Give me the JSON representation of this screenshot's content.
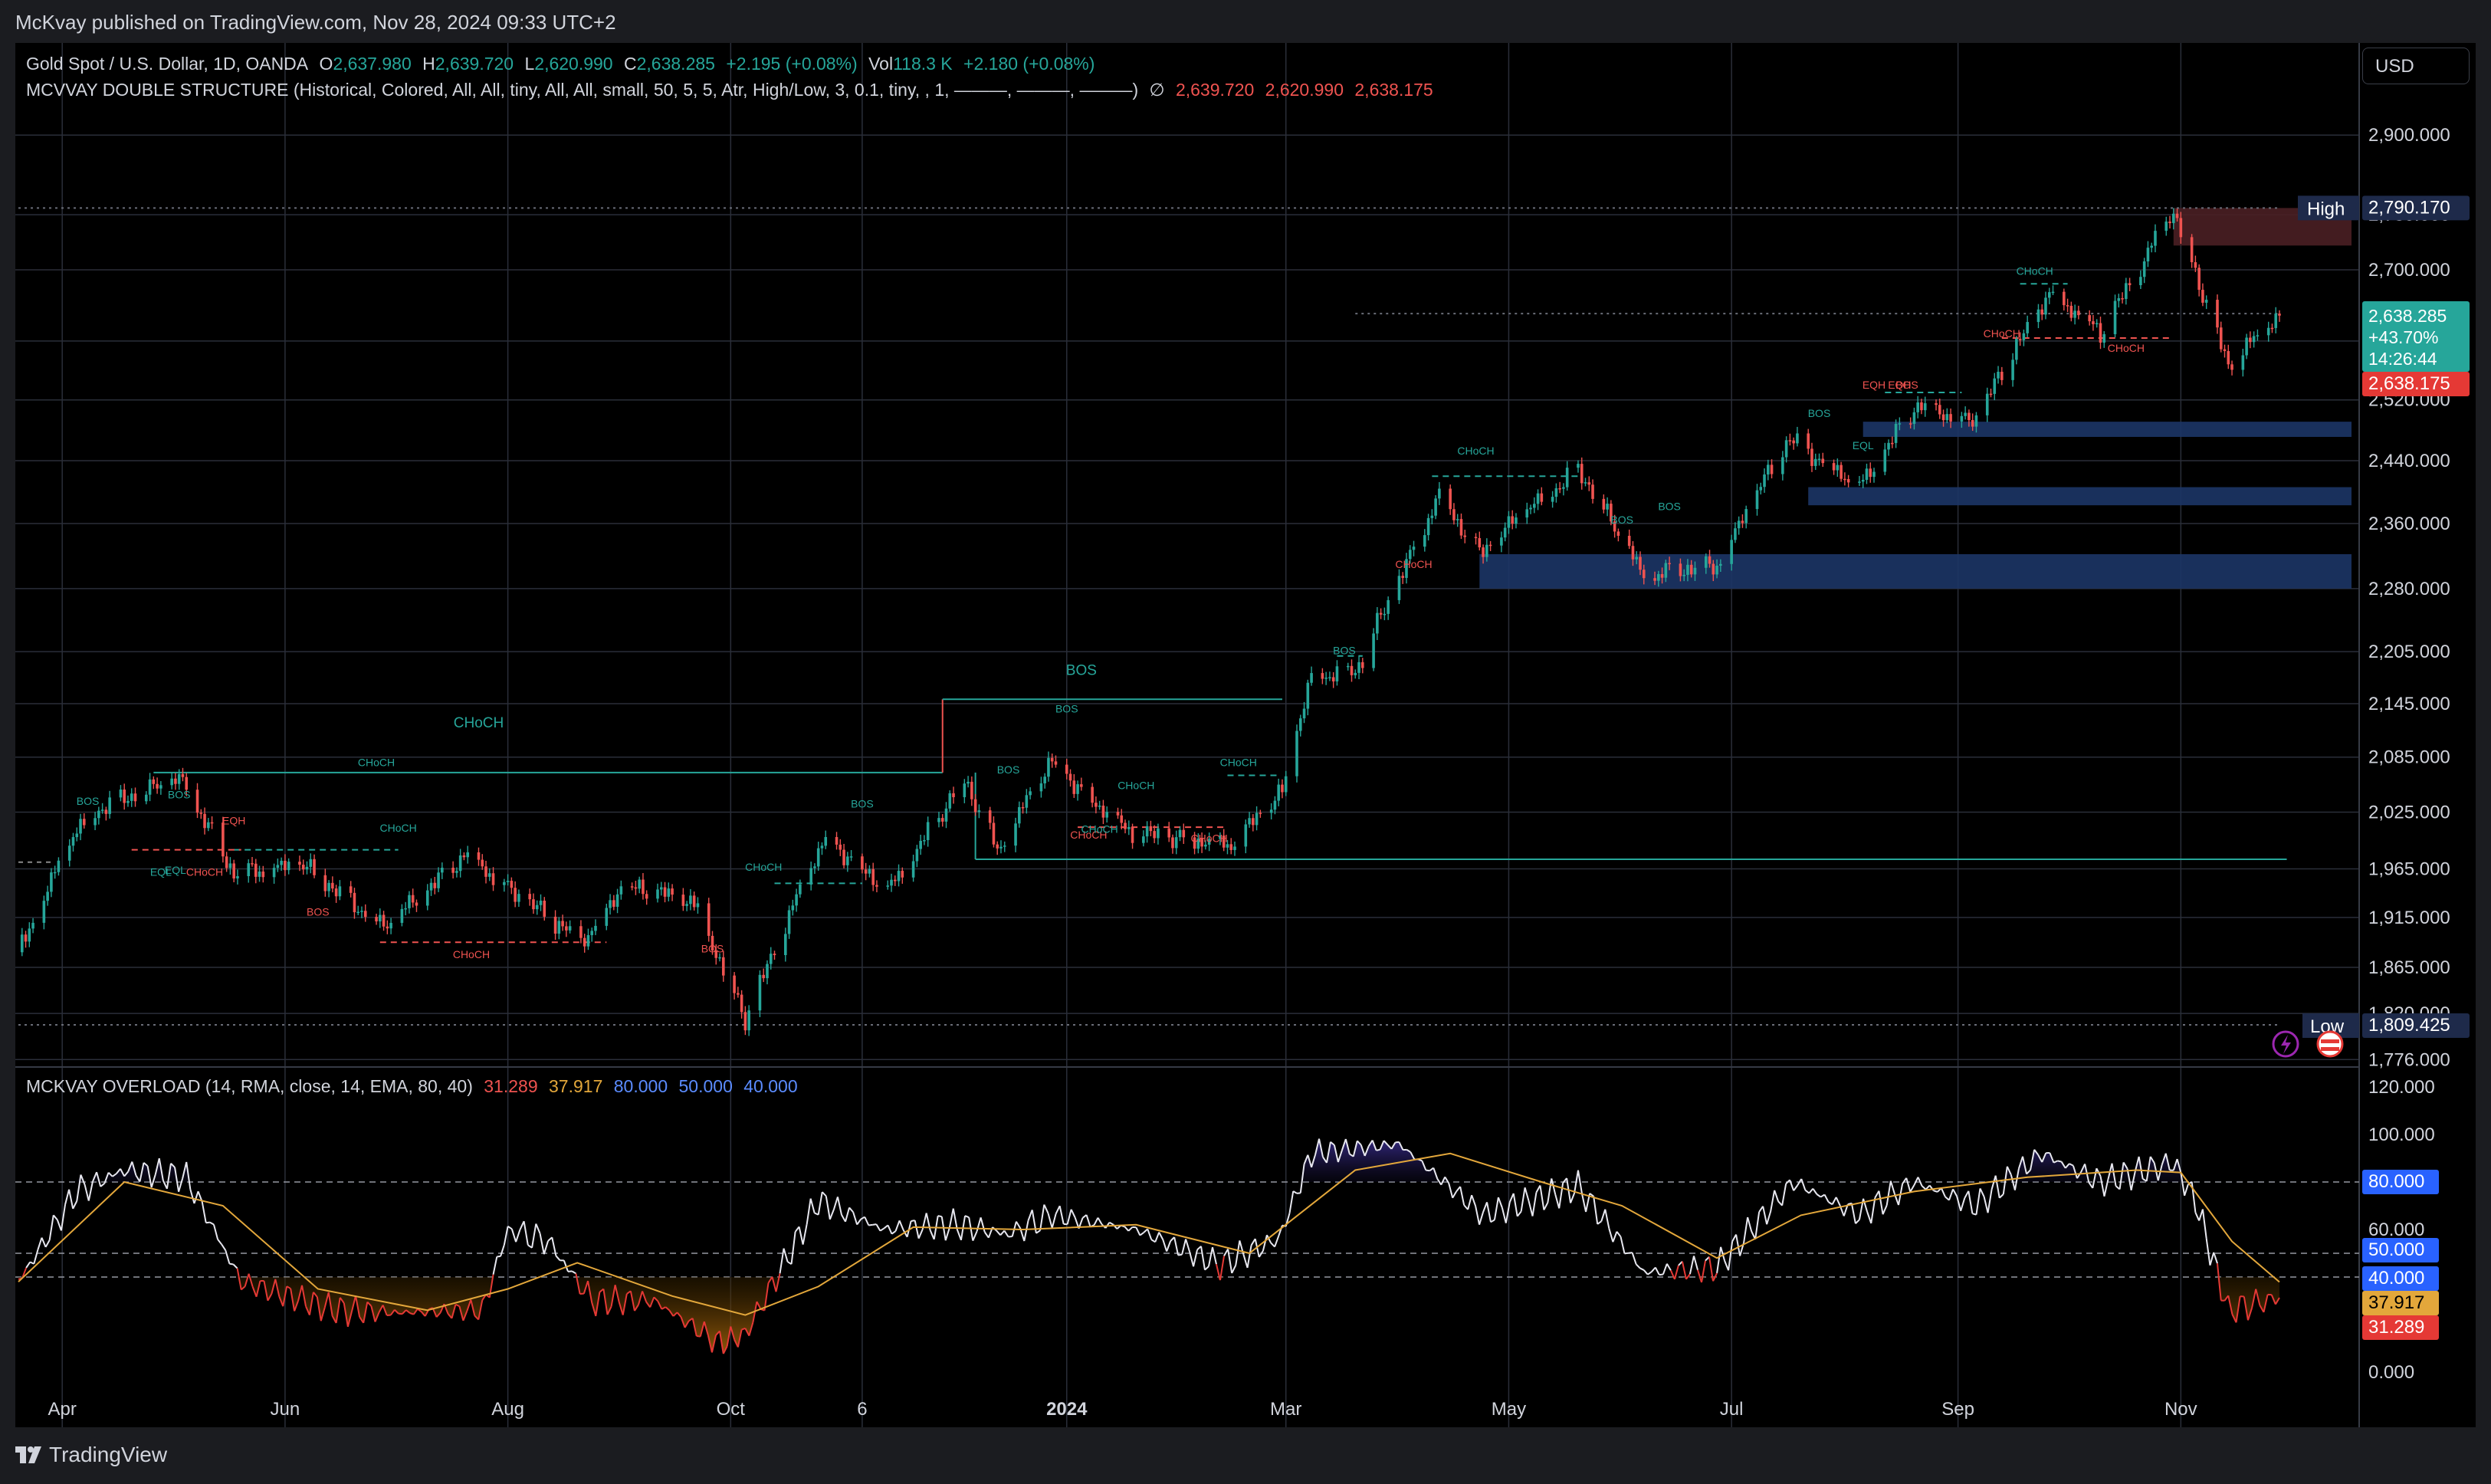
{
  "publisher_line": "McKvay published on TradingView.com, Nov 28, 2024 09:33 UTC+2",
  "currency_button": "USD",
  "footer_brand": "TradingView",
  "colors": {
    "bg": "#000000",
    "frame": "#1b1c20",
    "up": "#26a69a",
    "down": "#ef5350",
    "ema": "#e3a73b",
    "grid": "#2a2e39"
  },
  "legend_main": {
    "symbol": "Gold Spot / U.S. Dollar, 1D, OANDA",
    "o_label": "O",
    "o": "2,637.980",
    "h_label": "H",
    "h": "2,639.720",
    "l_label": "L",
    "l": "2,620.990",
    "c_label": "C",
    "c": "2,638.285",
    "change": "+2.195 (+0.08%)",
    "vol_label": "Vol",
    "vol": "118.3 K",
    "vol_change": "+2.180 (+0.08%)"
  },
  "legend_ind1": {
    "name": "MCVVAY DOUBLE STRUCTURE (Historical, Colored, All, All, tiny, All, All, small, 50, 5, 5, Atr, High/Low, 3, 0.1, tiny, , 1, ———, ———, ———)",
    "glyph": "∅",
    "v1": "2,639.720",
    "v2": "2,620.990",
    "v3": "2,638.175"
  },
  "legend_ind2": {
    "name": "MCKVAY OVERLOAD (14, RMA, close, 14, EMA, 80, 40)",
    "v1": "31.289",
    "v2": "37.917",
    "v3": "80.000",
    "v4": "50.000",
    "v5": "40.000"
  },
  "chart_data": [
    {
      "type": "candlestick",
      "title": "Gold Spot / U.S. Dollar, 1D, OANDA",
      "y_axis_labels": [
        "2,900.000",
        "2,780.000",
        "2,700.000",
        "2,600.000",
        "2,520.000",
        "2,440.000",
        "2,360.000",
        "2,280.000",
        "2,205.000",
        "2,145.000",
        "2,085.000",
        "2,025.000",
        "1,965.000",
        "1,915.000",
        "1,865.000",
        "1,820.000",
        "1,776.000"
      ],
      "x_axis_labels": [
        "Apr",
        "Jun",
        "Aug",
        "Oct",
        "6",
        "2024",
        "Mar",
        "May",
        "Jul",
        "Sep",
        "Nov"
      ],
      "price_path": [
        [
          "2023-03-20",
          1880
        ],
        [
          "2023-04-04",
          2000
        ],
        [
          "2023-04-13",
          2035
        ],
        [
          "2023-05-04",
          2060
        ],
        [
          "2023-05-18",
          1960
        ],
        [
          "2023-06-05",
          1970
        ],
        [
          "2023-06-29",
          1905
        ],
        [
          "2023-07-20",
          1980
        ],
        [
          "2023-08-21",
          1890
        ],
        [
          "2023-09-01",
          1945
        ],
        [
          "2023-09-20",
          1935
        ],
        [
          "2023-10-05",
          1815
        ],
        [
          "2023-10-27",
          2000
        ],
        [
          "2023-11-13",
          1940
        ],
        [
          "2023-12-04",
          2060
        ],
        [
          "2023-12-13",
          1985
        ],
        [
          "2023-12-28",
          2080
        ],
        [
          "2024-01-17",
          2005
        ],
        [
          "2024-02-14",
          1990
        ],
        [
          "2024-02-29",
          2045
        ],
        [
          "2024-03-08",
          2180
        ],
        [
          "2024-03-20",
          2180
        ],
        [
          "2024-04-12",
          2395
        ],
        [
          "2024-04-23",
          2325
        ],
        [
          "2024-05-20",
          2430
        ],
        [
          "2024-06-07",
          2295
        ],
        [
          "2024-06-27",
          2310
        ],
        [
          "2024-07-17",
          2470
        ],
        [
          "2024-08-05",
          2405
        ],
        [
          "2024-08-20",
          2510
        ],
        [
          "2024-09-06",
          2495
        ],
        [
          "2024-09-26",
          2670
        ],
        [
          "2024-10-10",
          2610
        ],
        [
          "2024-10-30",
          2785
        ],
        [
          "2024-11-14",
          2565
        ],
        [
          "2024-11-25",
          2620
        ],
        [
          "2024-11-28",
          2638
        ]
      ],
      "last_close": "2,638.285",
      "change_pct_label": "+43.70%",
      "countdown": "14:26:44",
      "last_level": "2,638.175",
      "high_label": "High",
      "high_value": "2,790.170",
      "low_label": "Low",
      "low_value": "1,809.425",
      "structure_labels": [
        {
          "text": "BOS",
          "date": "2023-04-08",
          "price": 2033,
          "color": "up"
        },
        {
          "text": "BOS",
          "date": "2023-05-03",
          "price": 2040,
          "color": "up"
        },
        {
          "text": "EQH",
          "date": "2023-05-18",
          "price": 2012,
          "color": "down"
        },
        {
          "text": "EQL",
          "date": "2023-04-28",
          "price": 1958,
          "color": "up"
        },
        {
          "text": "EQL",
          "date": "2023-05-02",
          "price": 1960,
          "color": "up"
        },
        {
          "text": "CHoCH",
          "date": "2023-05-10",
          "price": 1958,
          "color": "down"
        },
        {
          "text": "CHoCH",
          "date": "2023-07-02",
          "price": 2004,
          "color": "up"
        },
        {
          "text": "BOS",
          "date": "2023-06-10",
          "price": 1917,
          "color": "down"
        },
        {
          "text": "CHoCH",
          "date": "2023-07-22",
          "price": 1874,
          "color": "down"
        },
        {
          "text": "CHoCH",
          "date": "2023-06-26",
          "price": 2075,
          "color": "up"
        },
        {
          "text": "BOS",
          "date": "2023-09-26",
          "price": 1880,
          "color": "down"
        },
        {
          "text": "CHoCH",
          "date": "2023-10-10",
          "price": 1963,
          "color": "up"
        },
        {
          "text": "BOS",
          "date": "2023-11-06",
          "price": 2030,
          "color": "up"
        },
        {
          "text": "BOS",
          "date": "2024-01-01",
          "price": 2135,
          "color": "up"
        },
        {
          "text": "BOS",
          "date": "2023-12-16",
          "price": 2067,
          "color": "up"
        },
        {
          "text": "CHoCH",
          "date": "2024-01-07",
          "price": 1997,
          "color": "down"
        },
        {
          "text": "CHoCH",
          "date": "2024-01-10",
          "price": 2003,
          "color": "up"
        },
        {
          "text": "CHoCH",
          "date": "2024-01-20",
          "price": 2050,
          "color": "up"
        },
        {
          "text": "CHoCH",
          "date": "2024-02-17",
          "price": 2075,
          "color": "up"
        },
        {
          "text": "CHoCH",
          "date": "2024-02-09",
          "price": 1993,
          "color": "down"
        },
        {
          "text": "BOS",
          "date": "2024-03-17",
          "price": 2202,
          "color": "up"
        },
        {
          "text": "CHoCH",
          "date": "2024-04-05",
          "price": 2305,
          "color": "down"
        },
        {
          "text": "CHoCH",
          "date": "2024-04-22",
          "price": 2448,
          "color": "up"
        },
        {
          "text": "BOS",
          "date": "2024-06-01",
          "price": 2360,
          "color": "up"
        },
        {
          "text": "BOS",
          "date": "2024-06-14",
          "price": 2377,
          "color": "up"
        },
        {
          "text": "BOS",
          "date": "2024-07-25",
          "price": 2497,
          "color": "up"
        },
        {
          "text": "EQH",
          "date": "2024-08-09",
          "price": 2535,
          "color": "down"
        },
        {
          "text": "EQH",
          "date": "2024-08-16",
          "price": 2535,
          "color": "down"
        },
        {
          "text": "BOS",
          "date": "2024-08-18",
          "price": 2535,
          "color": "down"
        },
        {
          "text": "EQL",
          "date": "2024-08-06",
          "price": 2455,
          "color": "up"
        },
        {
          "text": "CHoCH",
          "date": "2024-09-22",
          "price": 2693,
          "color": "up"
        },
        {
          "text": "CHoCH",
          "date": "2024-09-13",
          "price": 2605,
          "color": "down"
        },
        {
          "text": "CHoCH",
          "date": "2024-10-17",
          "price": 2585,
          "color": "down"
        }
      ],
      "big_labels": [
        {
          "text": "CHoCH",
          "date": "2023-07-24",
          "price": 2118,
          "color": "up"
        },
        {
          "text": "BOS",
          "date": "2024-01-05",
          "price": 2178,
          "color": "up"
        }
      ],
      "supply_zone": {
        "from": "2024-10-30",
        "top": 2790,
        "bottom": 2735
      },
      "demand_zones": [
        {
          "from": "2024-08-06",
          "top": 2491,
          "bottom": 2471
        },
        {
          "from": "2024-07-22",
          "top": 2406,
          "bottom": 2383
        },
        {
          "from": "2024-04-23",
          "top": 2322,
          "bottom": 2280
        }
      ]
    },
    {
      "type": "line",
      "title": "MCKVAY OVERLOAD (14, RMA, close, 14, EMA, 80, 40)",
      "y_axis_labels": [
        "120.000",
        "100.000",
        "80.000",
        "60.000",
        "40.000",
        "20.000",
        "0.000"
      ],
      "ylim": [
        0,
        120
      ],
      "levels": [
        80,
        50,
        40
      ],
      "series": [
        {
          "role": "osc",
          "points": [
            [
              "2023-03-20",
              38
            ],
            [
              "2023-04-05",
              76
            ],
            [
              "2023-04-18",
              85
            ],
            [
              "2023-05-05",
              82
            ],
            [
              "2023-05-20",
              38
            ],
            [
              "2023-06-15",
              26
            ],
            [
              "2023-07-01",
              25
            ],
            [
              "2023-07-25",
              26
            ],
            [
              "2023-08-01",
              60
            ],
            [
              "2023-08-12",
              55
            ],
            [
              "2023-08-24",
              30
            ],
            [
              "2023-09-10",
              30
            ],
            [
              "2023-09-28",
              12
            ],
            [
              "2023-10-05",
              16
            ],
            [
              "2023-10-25",
              72
            ],
            [
              "2023-11-12",
              60
            ],
            [
              "2023-12-02",
              62
            ],
            [
              "2023-12-16",
              58
            ],
            [
              "2023-12-28",
              66
            ],
            [
              "2024-01-20",
              60
            ],
            [
              "2024-02-12",
              45
            ],
            [
              "2024-02-28",
              56
            ],
            [
              "2024-03-08",
              92
            ],
            [
              "2024-04-01",
              96
            ],
            [
              "2024-04-24",
              66
            ],
            [
              "2024-05-20",
              78
            ],
            [
              "2024-06-07",
              42
            ],
            [
              "2024-06-27",
              44
            ],
            [
              "2024-07-18",
              80
            ],
            [
              "2024-08-05",
              66
            ],
            [
              "2024-08-20",
              80
            ],
            [
              "2024-09-06",
              70
            ],
            [
              "2024-09-24",
              92
            ],
            [
              "2024-10-10",
              80
            ],
            [
              "2024-10-30",
              88
            ],
            [
              "2024-11-05",
              72
            ],
            [
              "2024-11-14",
              26
            ],
            [
              "2024-11-28",
              31.289
            ]
          ]
        },
        {
          "role": "ema",
          "points": [
            [
              "2023-03-20",
              38
            ],
            [
              "2023-04-18",
              80
            ],
            [
              "2023-05-15",
              70
            ],
            [
              "2023-06-10",
              35
            ],
            [
              "2023-07-10",
              26
            ],
            [
              "2023-08-01",
              35
            ],
            [
              "2023-08-20",
              46
            ],
            [
              "2023-09-15",
              32
            ],
            [
              "2023-10-05",
              24
            ],
            [
              "2023-10-25",
              36
            ],
            [
              "2023-11-20",
              61
            ],
            [
              "2023-12-20",
              60
            ],
            [
              "2024-01-20",
              62
            ],
            [
              "2024-02-20",
              50
            ],
            [
              "2024-03-20",
              85
            ],
            [
              "2024-04-15",
              92
            ],
            [
              "2024-05-10",
              80
            ],
            [
              "2024-06-01",
              70
            ],
            [
              "2024-06-27",
              48
            ],
            [
              "2024-07-20",
              66
            ],
            [
              "2024-08-20",
              76
            ],
            [
              "2024-09-20",
              82
            ],
            [
              "2024-10-20",
              85
            ],
            [
              "2024-11-01",
              84
            ],
            [
              "2024-11-15",
              55
            ],
            [
              "2024-11-28",
              37.917
            ]
          ]
        }
      ]
    }
  ],
  "osc_badges": [
    {
      "text": "80.000",
      "value": 80,
      "bg": "#2962ff"
    },
    {
      "text": "50.000",
      "value": 50,
      "bg": "#2962ff"
    },
    {
      "text": "40.000",
      "value": 40,
      "bg": "#2962ff"
    },
    {
      "text": "37.917",
      "value": 37.917,
      "bg": "#e3a73b"
    },
    {
      "text": "31.289",
      "value": 31.289,
      "bg": "#e53935"
    }
  ]
}
